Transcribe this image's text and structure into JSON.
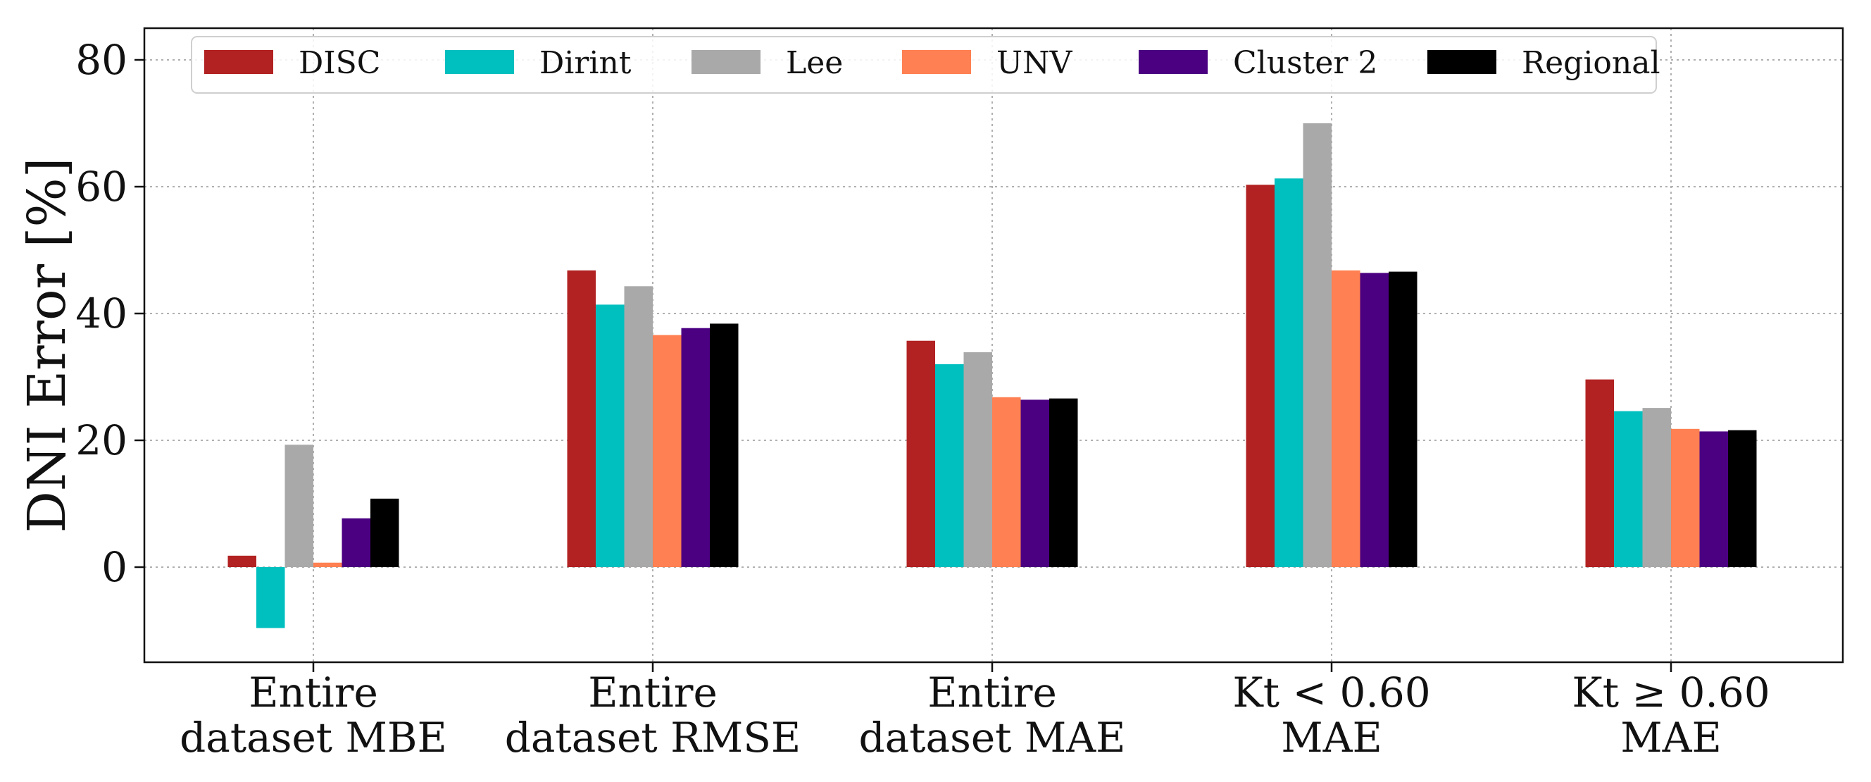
{
  "chart_data": {
    "type": "bar",
    "ylabel": "DNI Error [%]",
    "ylim": [
      -15,
      85
    ],
    "yticks": [
      0,
      20,
      40,
      60,
      80
    ],
    "grid": true,
    "legend_position": "top",
    "categories": [
      {
        "line1": "Entire",
        "line2": "dataset MBE"
      },
      {
        "line1": "Entire",
        "line2": "dataset RMSE"
      },
      {
        "line1": "Entire",
        "line2": "dataset MAE"
      },
      {
        "line1": "Kt < 0.60",
        "line2": "MAE"
      },
      {
        "line1": "Kt ≥ 0.60",
        "line2": "MAE"
      }
    ],
    "series": [
      {
        "name": "DISC",
        "color": "#b22222",
        "values": [
          1.8,
          46.8,
          35.7,
          60.3,
          29.6
        ]
      },
      {
        "name": "Dirint",
        "color": "#00bfbf",
        "values": [
          -9.6,
          41.4,
          32.0,
          61.3,
          24.6
        ]
      },
      {
        "name": "Lee",
        "color": "#a9a9a9",
        "values": [
          19.3,
          44.3,
          33.9,
          70.0,
          25.1
        ]
      },
      {
        "name": "UNV",
        "color": "#ff8052",
        "values": [
          0.7,
          36.6,
          26.8,
          46.8,
          21.8
        ]
      },
      {
        "name": "Cluster 2",
        "color": "#4b0082",
        "values": [
          7.7,
          37.7,
          26.4,
          46.4,
          21.4
        ]
      },
      {
        "name": "Regional",
        "color": "#000000",
        "values": [
          10.8,
          38.4,
          26.6,
          46.6,
          21.6
        ]
      }
    ]
  }
}
